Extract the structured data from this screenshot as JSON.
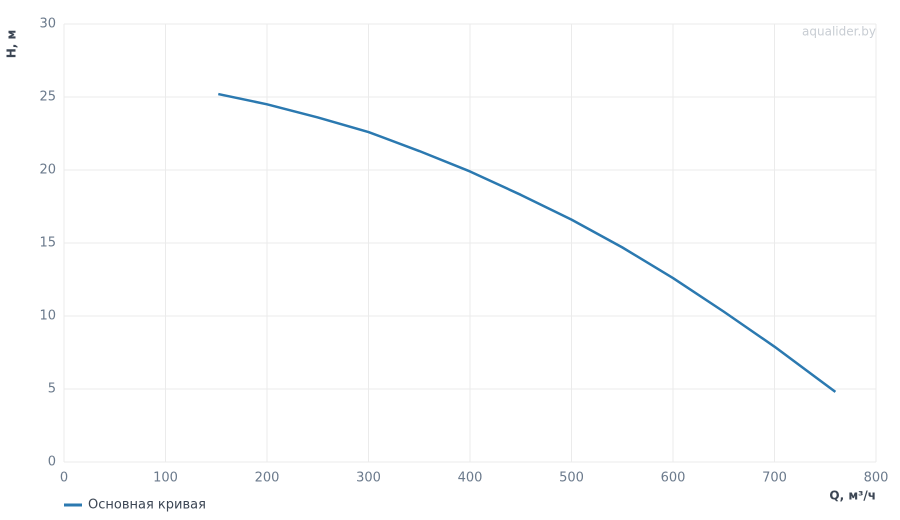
{
  "chart_data": {
    "type": "line",
    "watermark": "aqualider.by",
    "x_label": "Q, м³/ч",
    "y_label": "H, м",
    "x": [
      152,
      200,
      250,
      300,
      350,
      400,
      450,
      500,
      550,
      600,
      650,
      700,
      760
    ],
    "series": [
      {
        "name": "Основная кривая",
        "color": "#2b79b0",
        "values": [
          25.2,
          24.5,
          23.6,
          22.6,
          21.3,
          19.9,
          18.3,
          16.6,
          14.7,
          12.6,
          10.3,
          7.9,
          4.8
        ]
      }
    ],
    "xlim": [
      0,
      800
    ],
    "xticks": [
      0,
      100,
      200,
      300,
      400,
      500,
      600,
      700,
      800
    ],
    "ylim": [
      0,
      30
    ],
    "yticks": [
      0,
      5,
      10,
      15,
      20,
      25,
      30
    ],
    "grid": true,
    "legend": "bottom-left"
  }
}
